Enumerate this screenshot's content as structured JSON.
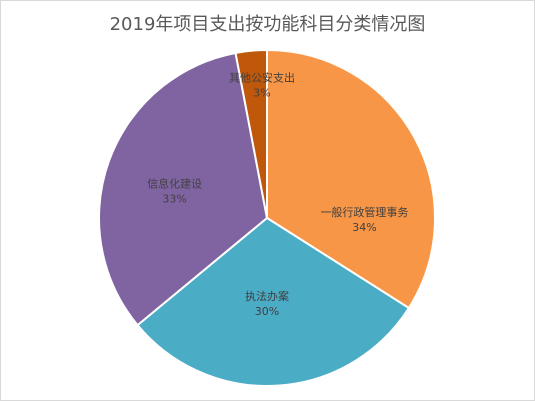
{
  "chart_data": {
    "type": "pie",
    "title": "2019年项目支出按功能科目分类情况图",
    "slices": [
      {
        "label": "一般行政管理事务",
        "percent_label": "34%",
        "value": 34,
        "color": "#F79646"
      },
      {
        "label": "执法办案",
        "percent_label": "30%",
        "value": 30,
        "color": "#4BACC6"
      },
      {
        "label": "信息化建设",
        "percent_label": "33%",
        "value": 33,
        "color": "#8064A2"
      },
      {
        "label": "其他公安支出",
        "percent_label": "3%",
        "value": 3,
        "color": "#C0580B"
      }
    ],
    "legend": "none"
  }
}
